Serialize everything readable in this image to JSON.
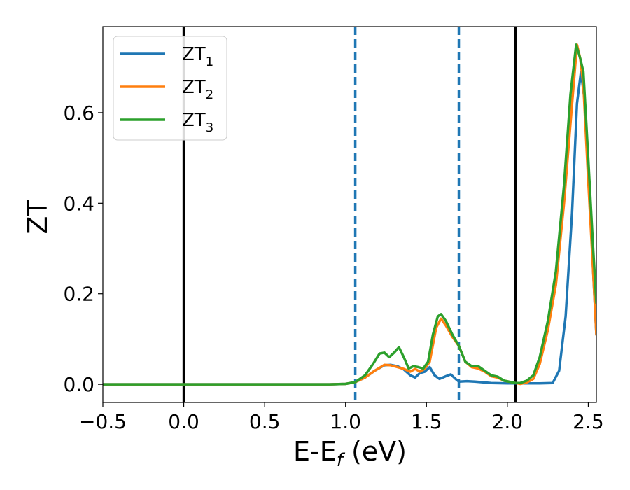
{
  "chart_data": {
    "type": "line",
    "xlabel": {
      "base": "E-E",
      "subscript": "f",
      "suffix": " (eV)"
    },
    "ylabel": "ZT",
    "xlim": [
      -0.5,
      2.55
    ],
    "ylim": [
      -0.04,
      0.79
    ],
    "x_ticks": [
      -0.5,
      0.0,
      0.5,
      1.0,
      1.5,
      2.0,
      2.5
    ],
    "x_tick_labels": [
      "−0.5",
      "0.0",
      "0.5",
      "1.0",
      "1.5",
      "2.0",
      "2.5"
    ],
    "y_ticks": [
      0.0,
      0.2,
      0.4,
      0.6
    ],
    "y_tick_labels": [
      "0.0",
      "0.2",
      "0.4",
      "0.6"
    ],
    "grid": false,
    "legend_position": "top-left",
    "vertical_lines": [
      {
        "x": 0.0,
        "color": "#000000",
        "style": "solid"
      },
      {
        "x": 2.05,
        "color": "#000000",
        "style": "solid"
      },
      {
        "x": 1.06,
        "color": "#1f77b4",
        "style": "dashed"
      },
      {
        "x": 1.7,
        "color": "#1f77b4",
        "style": "dashed"
      }
    ],
    "series": [
      {
        "name": "ZT",
        "subscript": "1",
        "color": "#1f77b4",
        "points": [
          [
            -0.5,
            0
          ],
          [
            0.9,
            0
          ],
          [
            1.0,
            0.001
          ],
          [
            1.06,
            0.005
          ],
          [
            1.12,
            0.015
          ],
          [
            1.18,
            0.03
          ],
          [
            1.24,
            0.042
          ],
          [
            1.28,
            0.043
          ],
          [
            1.32,
            0.04
          ],
          [
            1.36,
            0.033
          ],
          [
            1.4,
            0.02
          ],
          [
            1.43,
            0.015
          ],
          [
            1.46,
            0.025
          ],
          [
            1.49,
            0.028
          ],
          [
            1.52,
            0.038
          ],
          [
            1.55,
            0.02
          ],
          [
            1.58,
            0.012
          ],
          [
            1.62,
            0.018
          ],
          [
            1.65,
            0.022
          ],
          [
            1.68,
            0.012
          ],
          [
            1.7,
            0.006
          ],
          [
            1.75,
            0.007
          ],
          [
            1.8,
            0.006
          ],
          [
            1.9,
            0.003
          ],
          [
            2.0,
            0.002
          ],
          [
            2.1,
            0.002
          ],
          [
            2.2,
            0.002
          ],
          [
            2.28,
            0.003
          ],
          [
            2.32,
            0.03
          ],
          [
            2.36,
            0.15
          ],
          [
            2.4,
            0.38
          ],
          [
            2.43,
            0.62
          ],
          [
            2.455,
            0.69
          ],
          [
            2.48,
            0.62
          ],
          [
            2.51,
            0.42
          ],
          [
            2.53,
            0.25
          ],
          [
            2.55,
            0.11
          ]
        ]
      },
      {
        "name": "ZT",
        "subscript": "2",
        "color": "#ff7f0e",
        "points": [
          [
            -0.5,
            0
          ],
          [
            0.9,
            0
          ],
          [
            1.0,
            0.001
          ],
          [
            1.06,
            0.005
          ],
          [
            1.12,
            0.015
          ],
          [
            1.18,
            0.03
          ],
          [
            1.24,
            0.043
          ],
          [
            1.28,
            0.042
          ],
          [
            1.32,
            0.038
          ],
          [
            1.36,
            0.034
          ],
          [
            1.4,
            0.028
          ],
          [
            1.43,
            0.034
          ],
          [
            1.46,
            0.028
          ],
          [
            1.49,
            0.035
          ],
          [
            1.52,
            0.05
          ],
          [
            1.56,
            0.125
          ],
          [
            1.59,
            0.145
          ],
          [
            1.62,
            0.13
          ],
          [
            1.66,
            0.105
          ],
          [
            1.7,
            0.085
          ],
          [
            1.74,
            0.05
          ],
          [
            1.78,
            0.038
          ],
          [
            1.82,
            0.035
          ],
          [
            1.86,
            0.028
          ],
          [
            1.9,
            0.018
          ],
          [
            1.94,
            0.015
          ],
          [
            1.98,
            0.008
          ],
          [
            2.05,
            0.003
          ],
          [
            2.08,
            0.001
          ],
          [
            2.12,
            0.004
          ],
          [
            2.16,
            0.012
          ],
          [
            2.2,
            0.045
          ],
          [
            2.25,
            0.12
          ],
          [
            2.3,
            0.22
          ],
          [
            2.35,
            0.4
          ],
          [
            2.4,
            0.62
          ],
          [
            2.43,
            0.75
          ],
          [
            2.45,
            0.72
          ],
          [
            2.47,
            0.66
          ],
          [
            2.5,
            0.45
          ],
          [
            2.53,
            0.25
          ],
          [
            2.55,
            0.11
          ]
        ]
      },
      {
        "name": "ZT",
        "subscript": "3",
        "color": "#2ca02c",
        "points": [
          [
            -0.5,
            0
          ],
          [
            0.9,
            0
          ],
          [
            1.0,
            0.001
          ],
          [
            1.06,
            0.005
          ],
          [
            1.12,
            0.02
          ],
          [
            1.17,
            0.045
          ],
          [
            1.21,
            0.068
          ],
          [
            1.24,
            0.07
          ],
          [
            1.27,
            0.06
          ],
          [
            1.3,
            0.07
          ],
          [
            1.33,
            0.082
          ],
          [
            1.36,
            0.06
          ],
          [
            1.39,
            0.035
          ],
          [
            1.42,
            0.04
          ],
          [
            1.45,
            0.038
          ],
          [
            1.48,
            0.035
          ],
          [
            1.51,
            0.05
          ],
          [
            1.54,
            0.11
          ],
          [
            1.57,
            0.15
          ],
          [
            1.59,
            0.155
          ],
          [
            1.62,
            0.14
          ],
          [
            1.66,
            0.11
          ],
          [
            1.7,
            0.085
          ],
          [
            1.74,
            0.05
          ],
          [
            1.78,
            0.04
          ],
          [
            1.82,
            0.04
          ],
          [
            1.86,
            0.03
          ],
          [
            1.9,
            0.02
          ],
          [
            1.94,
            0.017
          ],
          [
            1.98,
            0.008
          ],
          [
            2.05,
            0.003
          ],
          [
            2.08,
            0.003
          ],
          [
            2.12,
            0.008
          ],
          [
            2.16,
            0.02
          ],
          [
            2.2,
            0.06
          ],
          [
            2.25,
            0.14
          ],
          [
            2.3,
            0.25
          ],
          [
            2.35,
            0.44
          ],
          [
            2.39,
            0.64
          ],
          [
            2.425,
            0.75
          ],
          [
            2.45,
            0.72
          ],
          [
            2.47,
            0.69
          ],
          [
            2.5,
            0.5
          ],
          [
            2.53,
            0.3
          ],
          [
            2.55,
            0.18
          ]
        ]
      }
    ]
  }
}
